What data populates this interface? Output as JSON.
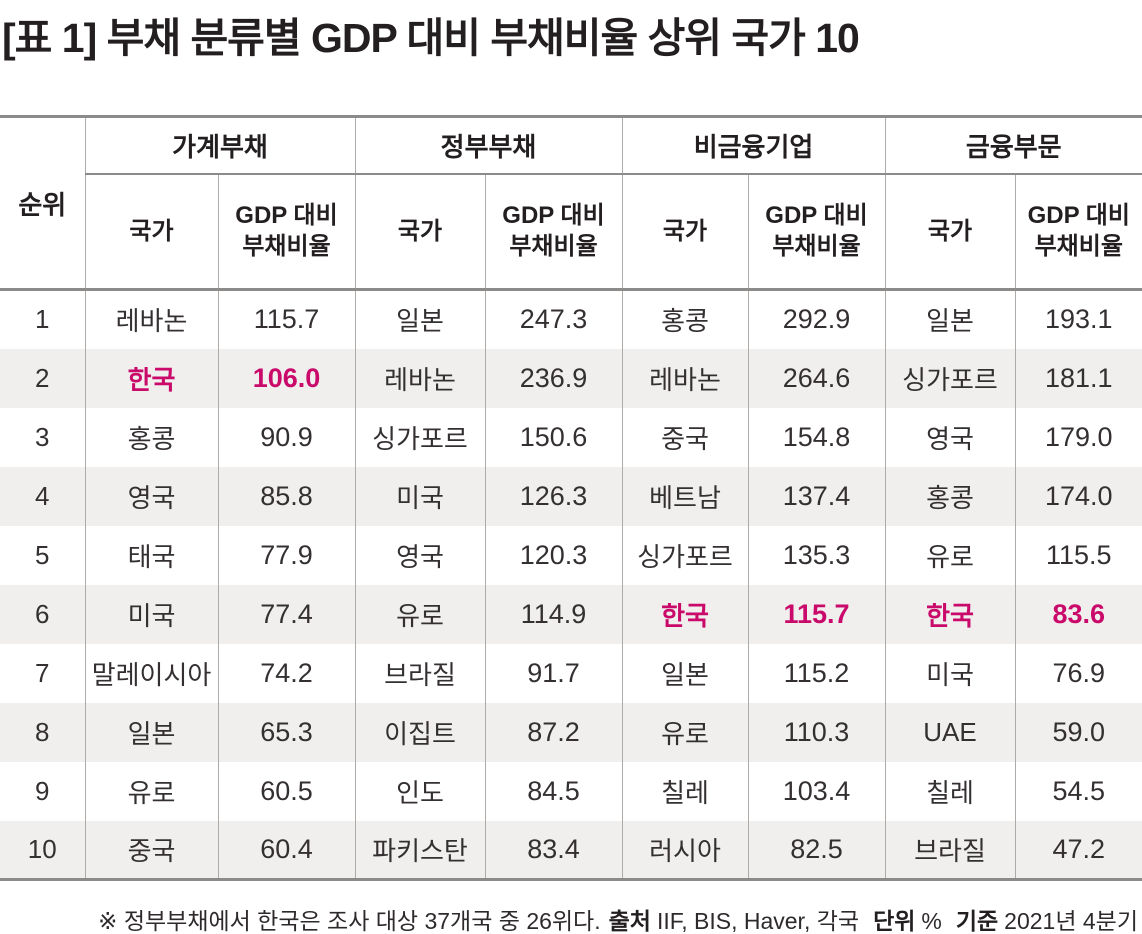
{
  "title": "[표 1] 부채 분류별 GDP 대비 부채비율 상위 국가 10",
  "colors": {
    "highlight": "#ca0a6a",
    "row_alt_bg": "#f0efed",
    "thin_border": "#adaba9",
    "thick_border": "#8d8b89",
    "text": "#231f20"
  },
  "table": {
    "rank_header": "순위",
    "groups": [
      "가계부채",
      "정부부채",
      "비금융기업",
      "금융부문"
    ],
    "sub_headers": {
      "country": "국가",
      "ratio": "GDP 대비 부채비율"
    }
  },
  "chart_data": {
    "type": "table",
    "title": "[표 1] 부채 분류별 GDP 대비 부채비율 상위 국가 10",
    "categories": [
      "가계부채",
      "정부부채",
      "비금융기업",
      "금융부문"
    ],
    "unit": "%",
    "basis": "2021년 4분기",
    "sources": "IIF, BIS, Haver, 각국",
    "highlight_country": "한국",
    "note": "정부부채에서 한국은 조사 대상 37개국 중 26위다.",
    "rows": [
      {
        "rank": "1",
        "cells": [
          {
            "country": "레바논",
            "value": "115.7",
            "highlight": false
          },
          {
            "country": "일본",
            "value": "247.3",
            "highlight": false
          },
          {
            "country": "홍콩",
            "value": "292.9",
            "highlight": false
          },
          {
            "country": "일본",
            "value": "193.1",
            "highlight": false
          }
        ]
      },
      {
        "rank": "2",
        "cells": [
          {
            "country": "한국",
            "value": "106.0",
            "highlight": true
          },
          {
            "country": "레바논",
            "value": "236.9",
            "highlight": false
          },
          {
            "country": "레바논",
            "value": "264.6",
            "highlight": false
          },
          {
            "country": "싱가포르",
            "value": "181.1",
            "highlight": false
          }
        ]
      },
      {
        "rank": "3",
        "cells": [
          {
            "country": "홍콩",
            "value": "90.9",
            "highlight": false
          },
          {
            "country": "싱가포르",
            "value": "150.6",
            "highlight": false
          },
          {
            "country": "중국",
            "value": "154.8",
            "highlight": false
          },
          {
            "country": "영국",
            "value": "179.0",
            "highlight": false
          }
        ]
      },
      {
        "rank": "4",
        "cells": [
          {
            "country": "영국",
            "value": "85.8",
            "highlight": false
          },
          {
            "country": "미국",
            "value": "126.3",
            "highlight": false
          },
          {
            "country": "베트남",
            "value": "137.4",
            "highlight": false
          },
          {
            "country": "홍콩",
            "value": "174.0",
            "highlight": false
          }
        ]
      },
      {
        "rank": "5",
        "cells": [
          {
            "country": "태국",
            "value": "77.9",
            "highlight": false
          },
          {
            "country": "영국",
            "value": "120.3",
            "highlight": false
          },
          {
            "country": "싱가포르",
            "value": "135.3",
            "highlight": false
          },
          {
            "country": "유로",
            "value": "115.5",
            "highlight": false
          }
        ]
      },
      {
        "rank": "6",
        "cells": [
          {
            "country": "미국",
            "value": "77.4",
            "highlight": false
          },
          {
            "country": "유로",
            "value": "114.9",
            "highlight": false
          },
          {
            "country": "한국",
            "value": "115.7",
            "highlight": true
          },
          {
            "country": "한국",
            "value": "83.6",
            "highlight": true
          }
        ]
      },
      {
        "rank": "7",
        "cells": [
          {
            "country": "말레이시아",
            "value": "74.2",
            "highlight": false
          },
          {
            "country": "브라질",
            "value": "91.7",
            "highlight": false
          },
          {
            "country": "일본",
            "value": "115.2",
            "highlight": false
          },
          {
            "country": "미국",
            "value": "76.9",
            "highlight": false
          }
        ]
      },
      {
        "rank": "8",
        "cells": [
          {
            "country": "일본",
            "value": "65.3",
            "highlight": false
          },
          {
            "country": "이집트",
            "value": "87.2",
            "highlight": false
          },
          {
            "country": "유로",
            "value": "110.3",
            "highlight": false
          },
          {
            "country": "UAE",
            "value": "59.0",
            "highlight": false
          }
        ]
      },
      {
        "rank": "9",
        "cells": [
          {
            "country": "유로",
            "value": "60.5",
            "highlight": false
          },
          {
            "country": "인도",
            "value": "84.5",
            "highlight": false
          },
          {
            "country": "칠레",
            "value": "103.4",
            "highlight": false
          },
          {
            "country": "칠레",
            "value": "54.5",
            "highlight": false
          }
        ]
      },
      {
        "rank": "10",
        "cells": [
          {
            "country": "중국",
            "value": "60.4",
            "highlight": false
          },
          {
            "country": "파키스탄",
            "value": "83.4",
            "highlight": false
          },
          {
            "country": "러시아",
            "value": "82.5",
            "highlight": false
          },
          {
            "country": "브라질",
            "value": "47.2",
            "highlight": false
          }
        ]
      }
    ]
  },
  "footer": {
    "note": "※ 정부부채에서 한국은 조사 대상 37개국 중 26위다.",
    "source_label": "출처",
    "source": "IIF, BIS, Haver, 각국",
    "unit_label": "단위",
    "unit": "%",
    "basis_label": "기준",
    "basis": "2021년 4분기"
  }
}
